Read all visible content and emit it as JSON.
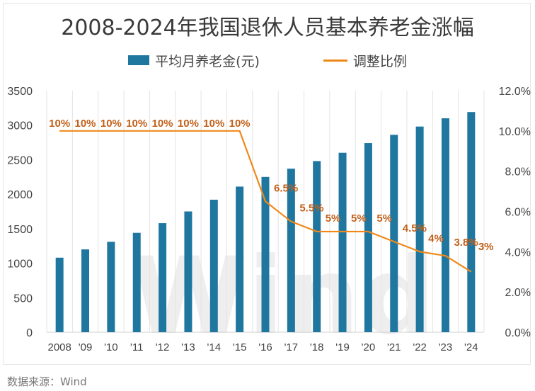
{
  "chart_data": {
    "type": "bar",
    "title": "2008-2024年我国退休人员基本养老金涨幅",
    "categories": [
      "2008",
      "'09",
      "'10",
      "'11",
      "'12",
      "'13",
      "'14",
      "'15",
      "'16",
      "'17",
      "'18",
      "'19",
      "'20",
      "'21",
      "'22",
      "'23",
      "'24"
    ],
    "series": [
      {
        "name": "平均月养老金(元)",
        "type": "bar",
        "axis": "left",
        "color": "#1f77a0",
        "values": [
          1080,
          1200,
          1310,
          1440,
          1580,
          1750,
          1920,
          2110,
          2250,
          2370,
          2480,
          2600,
          2740,
          2860,
          2980,
          3100,
          3190
        ]
      },
      {
        "name": "调整比例",
        "type": "line",
        "axis": "right",
        "color": "#f0891a",
        "values": [
          10,
          10,
          10,
          10,
          10,
          10,
          10,
          10,
          6.5,
          5.5,
          5,
          5,
          5,
          4.5,
          4,
          3.8,
          3
        ],
        "labels": [
          "10%",
          "10%",
          "10%",
          "10%",
          "10%",
          "10%",
          "10%",
          "10%",
          "6.5%",
          "5.5%",
          "5%",
          "5%",
          "5%",
          "4.5%",
          "4%",
          "3.8%",
          "3%"
        ]
      }
    ],
    "y_left": {
      "min": 0,
      "max": 3500,
      "step": 500,
      "ticks": [
        "0",
        "500",
        "1000",
        "1500",
        "2000",
        "2500",
        "3000",
        "3500"
      ]
    },
    "y_right": {
      "min": 0,
      "max": 12,
      "step": 2,
      "ticks": [
        "0.0%",
        "2.0%",
        "4.0%",
        "6.0%",
        "8.0%",
        "10.0%",
        "12.0%"
      ]
    },
    "grid": "vertical",
    "legend_position": "top",
    "watermark": "Wind"
  },
  "source": "数据来源：Wind"
}
